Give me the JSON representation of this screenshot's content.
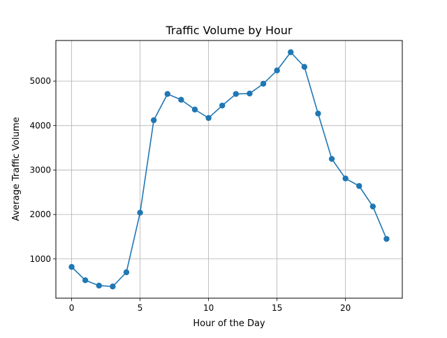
{
  "chart_data": {
    "type": "line",
    "title": "Traffic Volume by Hour",
    "xlabel": "Hour of the Day",
    "ylabel": "Average Traffic Volume",
    "x": [
      0,
      1,
      2,
      3,
      4,
      5,
      6,
      7,
      8,
      9,
      10,
      11,
      12,
      13,
      14,
      15,
      16,
      17,
      18,
      19,
      20,
      21,
      22,
      23
    ],
    "series": [
      {
        "name": "Average Traffic Volume",
        "values": [
          820,
          520,
          400,
          380,
          700,
          2040,
          4120,
          4710,
          4580,
          4360,
          4170,
          4450,
          4710,
          4720,
          4940,
          5240,
          5650,
          5320,
          4270,
          3250,
          2810,
          2640,
          2180,
          1450
        ]
      }
    ],
    "xlim": [
      -1.15,
      24.15
    ],
    "ylim": [
      117,
      5913
    ],
    "xticks": [
      0,
      5,
      10,
      15,
      20
    ],
    "yticks": [
      1000,
      2000,
      3000,
      4000,
      5000
    ],
    "grid": true,
    "line_color": "#1f77b4"
  }
}
